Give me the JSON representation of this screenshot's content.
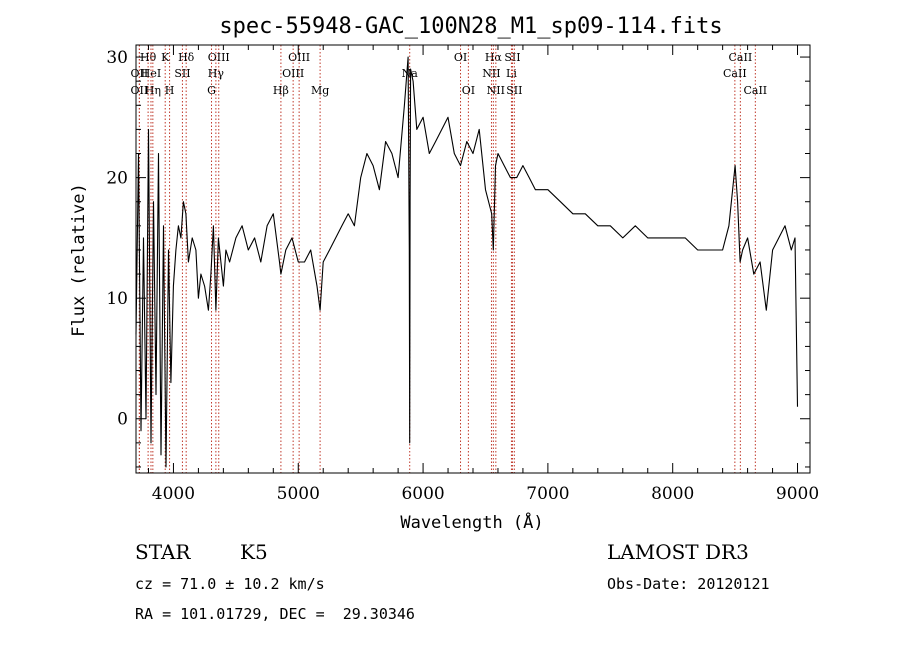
{
  "chart_data": {
    "type": "line",
    "title": "spec-55948-GAC_100N28_M1_sp09-114.fits",
    "xlabel": "Wavelength (Å)",
    "ylabel": "Flux (relative)",
    "xlim": [
      3700,
      9100
    ],
    "ylim": [
      -4.5,
      31
    ],
    "xticks": [
      {
        "value": 4000,
        "label": "4000"
      },
      {
        "value": 5000,
        "label": "5000"
      },
      {
        "value": 6000,
        "label": "6000"
      },
      {
        "value": 7000,
        "label": "7000"
      },
      {
        "value": 8000,
        "label": "8000"
      },
      {
        "value": 9000,
        "label": "9000"
      }
    ],
    "yticks": [
      {
        "value": 0,
        "label": "0"
      },
      {
        "value": 10,
        "label": "10"
      },
      {
        "value": 20,
        "label": "20"
      },
      {
        "value": 30,
        "label": "30"
      }
    ],
    "series": [
      {
        "name": "spectrum",
        "x": [
          3700,
          3720,
          3740,
          3760,
          3780,
          3800,
          3820,
          3840,
          3860,
          3880,
          3900,
          3920,
          3940,
          3960,
          3980,
          4000,
          4020,
          4040,
          4060,
          4080,
          4100,
          4120,
          4150,
          4180,
          4200,
          4220,
          4250,
          4280,
          4300,
          4320,
          4340,
          4360,
          4380,
          4400,
          4420,
          4450,
          4500,
          4550,
          4600,
          4650,
          4700,
          4750,
          4800,
          4850,
          4861,
          4900,
          4950,
          5000,
          5050,
          5100,
          5150,
          5175,
          5200,
          5250,
          5300,
          5350,
          5400,
          5450,
          5500,
          5550,
          5600,
          5650,
          5700,
          5750,
          5800,
          5850,
          5880,
          5890,
          5893,
          5896,
          5900,
          5920,
          5950,
          6000,
          6050,
          6100,
          6150,
          6200,
          6250,
          6300,
          6350,
          6400,
          6450,
          6500,
          6550,
          6563,
          6580,
          6600,
          6650,
          6700,
          6750,
          6800,
          6850,
          6900,
          6950,
          7000,
          7100,
          7200,
          7300,
          7400,
          7500,
          7600,
          7700,
          7800,
          7900,
          8000,
          8100,
          8200,
          8300,
          8400,
          8450,
          8500,
          8520,
          8540,
          8560,
          8600,
          8650,
          8700,
          8750,
          8800,
          8850,
          8900,
          8950,
          8980,
          9000
        ],
        "y": [
          7,
          22,
          -1,
          15,
          0,
          24,
          -2,
          18,
          2,
          22,
          -3,
          16,
          -4,
          14,
          3,
          11,
          14,
          16,
          15,
          18,
          17,
          13,
          15,
          14,
          10,
          12,
          11,
          9,
          12,
          16,
          9,
          15,
          13,
          11,
          14,
          13,
          15,
          16,
          14,
          15,
          13,
          16,
          17,
          13,
          12,
          14,
          15,
          13,
          13,
          14,
          11,
          9,
          13,
          14,
          15,
          16,
          17,
          16,
          20,
          22,
          21,
          19,
          23,
          22,
          20,
          26,
          30,
          14,
          -2,
          18,
          29,
          28,
          24,
          25,
          22,
          23,
          24,
          25,
          22,
          21,
          23,
          22,
          24,
          19,
          17,
          14,
          21,
          22,
          21,
          20,
          20,
          21,
          20,
          19,
          19,
          19,
          18,
          17,
          17,
          16,
          16,
          15,
          16,
          15,
          15,
          15,
          15,
          14,
          14,
          14,
          16,
          21,
          18,
          13,
          14,
          15,
          12,
          13,
          9,
          14,
          15,
          16,
          14,
          15,
          1
        ],
        "color": "#000000"
      }
    ],
    "spectral_lines": [
      {
        "label": "Hθ",
        "x": 3797,
        "row": 1
      },
      {
        "label": "OII",
        "x": 3727,
        "row": 2
      },
      {
        "label": "OII",
        "x": 3727,
        "row": 3
      },
      {
        "label": "HeI",
        "x": 3820,
        "row": 2
      },
      {
        "label": "Hη",
        "x": 3835,
        "row": 3
      },
      {
        "label": "K",
        "x": 3934,
        "row": 1
      },
      {
        "label": "SII",
        "x": 4072,
        "row": 2
      },
      {
        "label": "H",
        "x": 3969,
        "row": 3
      },
      {
        "label": "Hδ",
        "x": 4102,
        "row": 1
      },
      {
        "label": "OIII",
        "x": 4363,
        "row": 1
      },
      {
        "label": "Hγ",
        "x": 4340,
        "row": 2
      },
      {
        "label": "G",
        "x": 4305,
        "row": 3
      },
      {
        "label": "OIII",
        "x": 5007,
        "row": 1
      },
      {
        "label": "OIII",
        "x": 4959,
        "row": 2
      },
      {
        "label": "Hβ",
        "x": 4861,
        "row": 3
      },
      {
        "label": "Mg",
        "x": 5175,
        "row": 3
      },
      {
        "label": "Na",
        "x": 5893,
        "row": 2
      },
      {
        "label": "OI",
        "x": 6300,
        "row": 1
      },
      {
        "label": "OI",
        "x": 6363,
        "row": 3
      },
      {
        "label": "Hα",
        "x": 6563,
        "row": 1
      },
      {
        "label": "SII",
        "x": 6716,
        "row": 1
      },
      {
        "label": "NII",
        "x": 6548,
        "row": 2
      },
      {
        "label": "Li",
        "x": 6708,
        "row": 2
      },
      {
        "label": "NII",
        "x": 6583,
        "row": 3
      },
      {
        "label": "SII",
        "x": 6731,
        "row": 3
      },
      {
        "label": "CaII",
        "x": 8542,
        "row": 1
      },
      {
        "label": "CaII",
        "x": 8498,
        "row": 2
      },
      {
        "label": "CaII",
        "x": 8662,
        "row": 3
      }
    ]
  },
  "info": {
    "object_class": "STAR",
    "subclass": "K5",
    "survey": "LAMOST DR3",
    "redshift_text": "cz = 71.0 ± 10.2 km/s",
    "obs_date_text": "Obs-Date: 20120121",
    "coords_text": "RA = 101.01729, DEC =  29.30346"
  }
}
